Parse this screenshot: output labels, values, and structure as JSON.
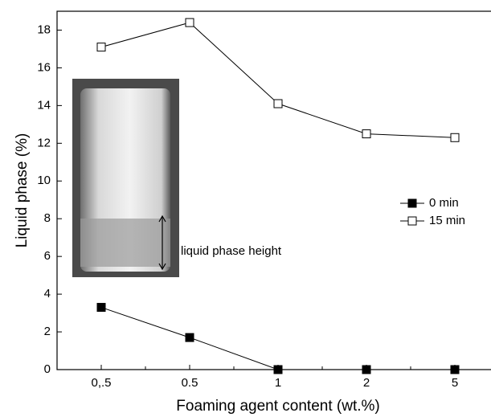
{
  "chart_data": {
    "type": "line",
    "x_label": "Foaming agent content (wt.%)",
    "y_label": "Liquid phase (%)",
    "categories": [
      "0,.5",
      "0.5",
      "1",
      "2",
      "5"
    ],
    "series": [
      {
        "name": "0 min",
        "color": "#000000",
        "marker": "filled-square",
        "values": [
          3.3,
          1.7,
          0,
          0,
          0
        ]
      },
      {
        "name": "15 min",
        "color": "#000000",
        "marker": "open-square",
        "values": [
          17.1,
          18.4,
          14.1,
          12.5,
          12.3
        ]
      }
    ],
    "ylim": [
      0,
      19
    ],
    "yticks": [
      0,
      2,
      4,
      6,
      8,
      10,
      12,
      14,
      16,
      18
    ],
    "legend": "right",
    "annotation": "liquid phase height"
  }
}
